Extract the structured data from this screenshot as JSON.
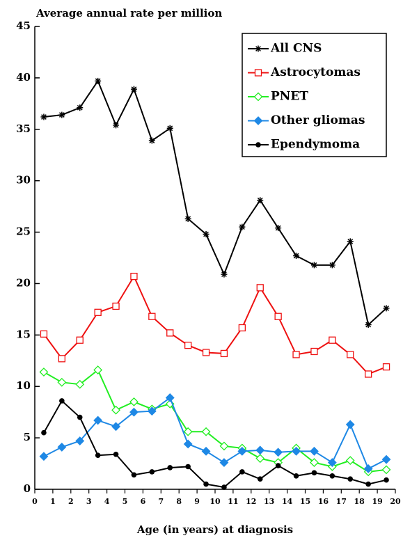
{
  "chart_data": {
    "type": "line",
    "title": "Average annual rate per million",
    "x_label": "Age (in years) at diagnosis",
    "x": [
      0.5,
      1.5,
      2.5,
      3.5,
      4.5,
      5.5,
      6.5,
      7.5,
      8.5,
      9.5,
      10.5,
      11.5,
      12.5,
      13.5,
      14.5,
      15.5,
      16.5,
      17.5,
      18.5,
      19.5
    ],
    "series": [
      {
        "name": "All CNS",
        "color": "#000000",
        "marker": "star",
        "values": [
          36.2,
          36.4,
          37.1,
          39.7,
          35.4,
          38.9,
          33.9,
          35.1,
          26.3,
          24.8,
          20.9,
          25.5,
          28.1,
          25.4,
          22.7,
          21.8,
          21.8,
          24.1,
          16.0,
          17.6
        ]
      },
      {
        "name": "Astrocytomas",
        "color": "#ee1111",
        "marker": "square",
        "values": [
          15.1,
          12.7,
          14.5,
          17.2,
          17.8,
          20.7,
          16.8,
          15.2,
          14.0,
          13.3,
          13.2,
          15.7,
          19.6,
          16.8,
          13.1,
          13.4,
          14.5,
          13.1,
          11.2,
          11.9
        ]
      },
      {
        "name": "PNET",
        "color": "#22ee22",
        "marker": "diamond-open",
        "values": [
          11.4,
          10.4,
          10.2,
          11.6,
          7.7,
          8.5,
          7.8,
          8.3,
          5.6,
          5.6,
          4.2,
          4.0,
          3.0,
          2.6,
          4.0,
          2.6,
          2.2,
          2.8,
          1.7,
          1.9
        ]
      },
      {
        "name": "Other gliomas",
        "color": "#1e88e5",
        "marker": "diamond",
        "values": [
          3.2,
          4.1,
          4.7,
          6.7,
          6.1,
          7.5,
          7.6,
          8.9,
          4.4,
          3.7,
          2.6,
          3.7,
          3.8,
          3.6,
          3.7,
          3.7,
          2.6,
          6.3,
          2.0,
          2.9
        ]
      },
      {
        "name": "Ependymoma",
        "color": "#000000",
        "marker": "circle",
        "values": [
          5.5,
          8.6,
          7.0,
          3.3,
          3.4,
          1.4,
          1.7,
          2.1,
          2.2,
          0.5,
          0.2,
          1.7,
          1.0,
          2.3,
          1.3,
          1.6,
          1.3,
          1.0,
          0.5,
          0.9
        ]
      }
    ],
    "xlim": [
      0,
      20
    ],
    "xticks": [
      0,
      1,
      2,
      3,
      4,
      5,
      6,
      7,
      8,
      9,
      10,
      11,
      12,
      13,
      14,
      15,
      16,
      17,
      18,
      19,
      20
    ],
    "ylim": [
      0,
      45
    ],
    "yticks": [
      0,
      5,
      10,
      15,
      20,
      25,
      30,
      35,
      40,
      45
    ],
    "legend": "upper right"
  }
}
